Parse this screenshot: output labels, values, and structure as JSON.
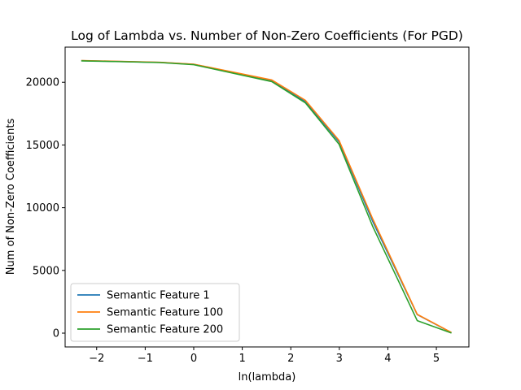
{
  "chart_data": {
    "type": "line",
    "title": "Log of Lambda vs. Number of Non-Zero Coefficients (For PGD)",
    "xlabel": "ln(lambda)",
    "ylabel": "Num of Non-Zero Coefficients",
    "xlim": [
      -2.65,
      5.67
    ],
    "ylim": [
      -1100,
      22800
    ],
    "xticks": [
      -2,
      -1,
      0,
      1,
      2,
      3,
      4,
      5
    ],
    "xtick_labels": [
      "−2",
      "−1",
      "0",
      "1",
      "2",
      "3",
      "4",
      "5"
    ],
    "yticks": [
      0,
      5000,
      10000,
      15000,
      20000
    ],
    "ytick_labels": [
      "0",
      "5000",
      "10000",
      "15000",
      "20000"
    ],
    "grid": false,
    "legend_position": "lower-left",
    "x": [
      -2.303,
      -1.609,
      -0.693,
      0.0,
      1.609,
      2.303,
      2.996,
      3.689,
      4.605,
      5.298
    ],
    "series": [
      {
        "name": "Semantic Feature 1",
        "color": "#1f77b4",
        "values": [
          21720,
          21660,
          21580,
          21430,
          20150,
          18450,
          15250,
          8900,
          1480,
          60
        ]
      },
      {
        "name": "Semantic Feature 100",
        "color": "#ff7f0e",
        "values": [
          21730,
          21670,
          21590,
          21440,
          20180,
          18550,
          15350,
          9100,
          1500,
          80
        ]
      },
      {
        "name": "Semantic Feature 200",
        "color": "#2ca02c",
        "values": [
          21700,
          21650,
          21570,
          21400,
          20050,
          18350,
          15050,
          8500,
          1000,
          30
        ]
      }
    ]
  }
}
